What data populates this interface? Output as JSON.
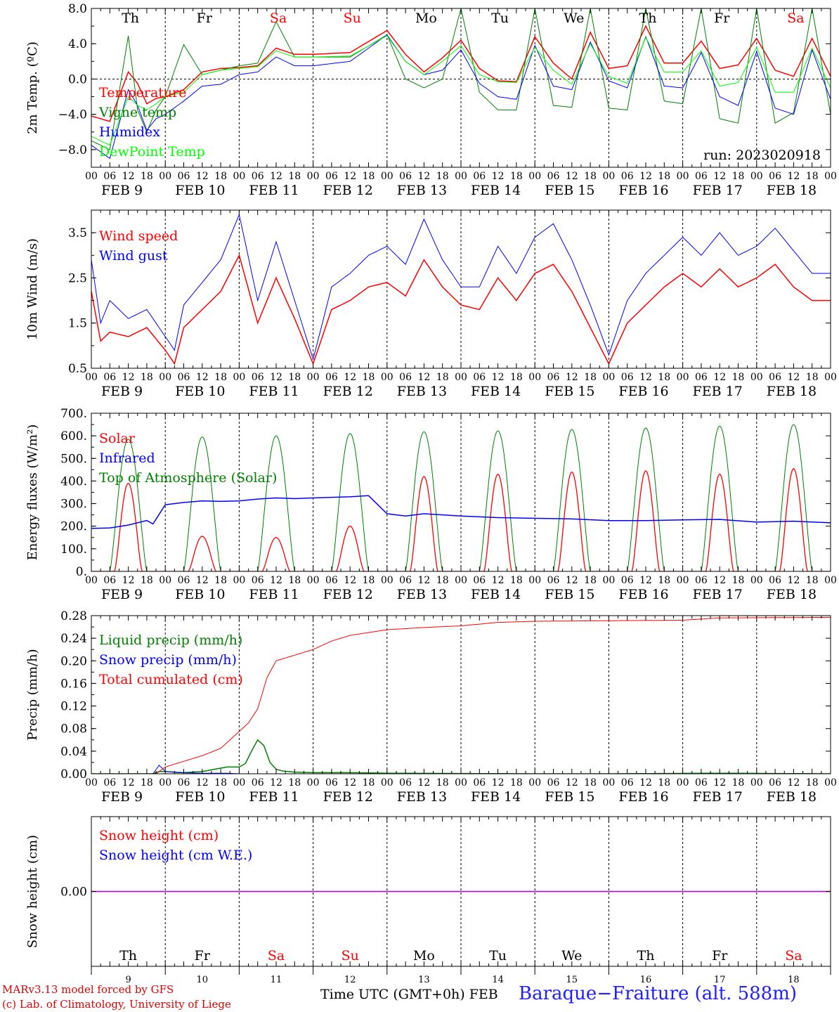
{
  "run_label": "run: 2023020918",
  "day_names": [
    "Th",
    "Fr",
    "Sa",
    "Su",
    "Mo",
    "Tu",
    "We",
    "Th",
    "Fr",
    "Sa"
  ],
  "weekend_flags": [
    false,
    false,
    true,
    true,
    false,
    false,
    false,
    false,
    false,
    true
  ],
  "date_labels": [
    "FEB  9",
    "FEB 10",
    "FEB 11",
    "FEB 12",
    "FEB 13",
    "FEB 14",
    "FEB 15",
    "FEB 16",
    "FEB 17",
    "FEB 18"
  ],
  "day_numbers": [
    "9",
    "10",
    "11",
    "12",
    "13",
    "14",
    "15",
    "16",
    "17",
    "18"
  ],
  "hour_tick_labels": [
    "00",
    "06",
    "12",
    "18"
  ],
  "final_hour_label": "00",
  "footer": {
    "credit_line1": "MARv3.13 model forced by GFS",
    "credit_line2": "(c) Lab. of Climatology, University of Liege",
    "x_axis_title": "Time UTC (GMT+0h) FEB",
    "station": "Baraque−Fraiture (alt. 588m)"
  },
  "colors": {
    "red": "#ff0000",
    "green": "#008000",
    "blue": "#0000ff",
    "light_green": "#00ff00",
    "purple": "#a020f0",
    "axis": "#000000"
  },
  "chart_data": [
    {
      "type": "line",
      "name": "temperature",
      "ylabel": "2m Temp. (ºC)",
      "ylim": [
        -10,
        8
      ],
      "ytick_values": [
        8,
        4,
        0,
        -4,
        -8
      ],
      "ytick_labels": [
        "8.0",
        "4.0",
        "0.0",
        "−4.0",
        "−8.0"
      ],
      "zero_line": true,
      "x_unit": "hours since FEB 9 00 UTC",
      "legend_position": "left",
      "series": [
        {
          "name": "Temperature",
          "color": "#ff0000",
          "x": [
            0,
            6,
            12,
            15,
            18,
            21,
            24,
            30,
            36,
            42,
            48,
            54,
            60,
            66,
            72,
            84,
            96,
            102,
            108,
            114,
            120,
            126,
            132,
            138,
            144,
            150,
            156,
            162,
            168,
            174,
            180,
            186,
            192,
            198,
            204,
            210,
            216,
            222,
            228,
            234,
            240
          ],
          "y": [
            -4.2,
            -4.8,
            0.8,
            -0.5,
            -2.8,
            -2.2,
            -2.0,
            -1.2,
            0.8,
            1.2,
            1.3,
            1.5,
            3.5,
            2.8,
            2.8,
            3.0,
            5.5,
            2.8,
            0.8,
            2.4,
            4.4,
            1.2,
            -0.2,
            -0.3,
            4.8,
            1.8,
            0.0,
            5.3,
            1.2,
            1.5,
            6.0,
            1.8,
            1.8,
            4.3,
            1.2,
            1.6,
            4.6,
            1.0,
            0.3,
            4.6,
            0.3
          ]
        },
        {
          "name": "Vigne temp",
          "color": "#008000",
          "x": [
            0,
            6,
            12,
            15,
            18,
            21,
            24,
            30,
            36,
            42,
            48,
            54,
            60,
            66,
            72,
            84,
            96,
            102,
            108,
            114,
            120,
            126,
            132,
            138,
            144,
            150,
            156,
            162,
            168,
            174,
            180,
            186,
            192,
            198,
            204,
            210,
            216,
            222,
            228,
            234,
            240
          ],
          "y": [
            -7.0,
            -8.0,
            4.9,
            -3.5,
            -6.0,
            -3.5,
            -2.0,
            3.9,
            0.5,
            1.0,
            1.5,
            1.8,
            6.5,
            2.5,
            2.5,
            2.5,
            5.0,
            0.0,
            -1.0,
            0.0,
            8.0,
            -1.5,
            -3.5,
            -3.5,
            8.0,
            -3.0,
            -3.2,
            8.0,
            -3.3,
            -3.5,
            8.0,
            -2.5,
            -2.8,
            8.0,
            -4.5,
            -5.0,
            8.0,
            -5.0,
            -3.8,
            8.0,
            -4.0
          ]
        },
        {
          "name": "Humidex",
          "color": "#0000ff",
          "x": [
            0,
            6,
            12,
            15,
            18,
            21,
            24,
            30,
            36,
            42,
            48,
            54,
            60,
            66,
            72,
            84,
            96,
            102,
            108,
            114,
            120,
            126,
            132,
            138,
            144,
            150,
            156,
            162,
            168,
            174,
            180,
            186,
            192,
            198,
            204,
            210,
            216,
            222,
            228,
            234,
            240
          ],
          "y": [
            -7.5,
            -9.0,
            -1.2,
            -3.0,
            -5.8,
            -4.5,
            -4.0,
            -2.5,
            -0.8,
            -0.6,
            0.5,
            0.8,
            2.5,
            1.5,
            1.5,
            2.0,
            5.0,
            2.0,
            0.5,
            1.0,
            3.3,
            -0.5,
            -2.0,
            -2.3,
            3.8,
            -0.8,
            -1.2,
            4.2,
            -0.2,
            -1.0,
            4.8,
            -0.8,
            -1.0,
            3.0,
            -2.0,
            -3.0,
            3.1,
            -3.3,
            -4.0,
            3.3,
            -2.3
          ]
        },
        {
          "name": "DewPoint Temp",
          "color": "#00ff00",
          "x": [
            0,
            6,
            12,
            15,
            18,
            21,
            24,
            30,
            36,
            42,
            48,
            54,
            60,
            66,
            72,
            84,
            96,
            102,
            108,
            114,
            120,
            126,
            132,
            138,
            144,
            150,
            156,
            162,
            168,
            174,
            180,
            186,
            192,
            198,
            204,
            210,
            216,
            222,
            228,
            234,
            240
          ],
          "y": [
            -6.5,
            -7.5,
            -2.0,
            -3.0,
            -3.5,
            -2.8,
            -2.0,
            -1.5,
            0.5,
            1.0,
            1.2,
            1.4,
            3.2,
            2.5,
            2.5,
            2.6,
            4.9,
            2.0,
            0.5,
            2.0,
            3.8,
            0.5,
            -0.3,
            -0.4,
            3.6,
            1.0,
            -0.6,
            4.0,
            0.3,
            -0.5,
            4.7,
            0.8,
            0.8,
            3.2,
            -0.8,
            -0.4,
            3.6,
            -1.5,
            -1.5,
            3.5,
            -1.0
          ]
        }
      ]
    },
    {
      "type": "line",
      "name": "wind",
      "ylabel": "10m Wind (m/s)",
      "ylim": [
        0.5,
        4.0
      ],
      "ytick_values": [
        3.5,
        2.5,
        1.5,
        0.5
      ],
      "ytick_labels": [
        "3.5",
        "2.5",
        "1.5",
        "0.5"
      ],
      "zero_line": false,
      "x_unit": "hours since FEB 9 00 UTC",
      "legend_position": "left",
      "series": [
        {
          "name": "Wind speed",
          "color": "#ff0000",
          "x": [
            0,
            3,
            6,
            12,
            18,
            24,
            27,
            30,
            36,
            42,
            48,
            54,
            60,
            66,
            72,
            78,
            84,
            90,
            96,
            102,
            108,
            114,
            120,
            126,
            132,
            138,
            144,
            150,
            156,
            162,
            168,
            174,
            180,
            186,
            192,
            198,
            204,
            210,
            216,
            222,
            228,
            234,
            240
          ],
          "y": [
            2.2,
            1.1,
            1.3,
            1.2,
            1.4,
            0.9,
            0.6,
            1.4,
            1.8,
            2.2,
            3.0,
            1.5,
            2.5,
            1.6,
            0.6,
            1.8,
            2.0,
            2.3,
            2.4,
            2.1,
            2.9,
            2.3,
            1.9,
            1.8,
            2.5,
            2.0,
            2.6,
            2.8,
            2.2,
            1.4,
            0.6,
            1.5,
            1.9,
            2.3,
            2.6,
            2.3,
            2.7,
            2.3,
            2.5,
            2.8,
            2.3,
            2.0,
            2.0
          ]
        },
        {
          "name": "Wind gust",
          "color": "#0000ff",
          "x": [
            0,
            3,
            6,
            12,
            18,
            24,
            27,
            30,
            36,
            42,
            48,
            54,
            60,
            66,
            72,
            78,
            84,
            90,
            96,
            102,
            108,
            114,
            120,
            126,
            132,
            138,
            144,
            150,
            156,
            162,
            168,
            174,
            180,
            186,
            192,
            198,
            204,
            210,
            216,
            222,
            228,
            234,
            240
          ],
          "y": [
            2.9,
            1.5,
            2.0,
            1.6,
            1.8,
            1.2,
            0.9,
            1.9,
            2.4,
            2.9,
            3.9,
            2.0,
            3.3,
            2.0,
            0.7,
            2.3,
            2.6,
            3.0,
            3.2,
            2.8,
            3.8,
            2.9,
            2.3,
            2.3,
            3.2,
            2.6,
            3.4,
            3.7,
            2.9,
            1.9,
            0.8,
            2.0,
            2.6,
            3.0,
            3.4,
            3.0,
            3.5,
            3.0,
            3.2,
            3.6,
            3.1,
            2.6,
            2.6
          ]
        }
      ]
    },
    {
      "type": "line",
      "name": "energy",
      "ylabel": "Energy fluxes (W/m²)",
      "ylim": [
        0,
        700
      ],
      "ytick_values": [
        700,
        600,
        500,
        400,
        300,
        200,
        100,
        0
      ],
      "ytick_labels": [
        "700.",
        "600.",
        "500.",
        "400.",
        "300.",
        "200.",
        "100.",
        "0."
      ],
      "zero_line": false,
      "x_unit": "hours since FEB 9 00 UTC",
      "legend_position": "left",
      "toa_peaks": [
        585,
        595,
        600,
        610,
        618,
        622,
        628,
        635,
        643,
        650
      ],
      "solar_peaks": [
        390,
        155,
        150,
        200,
        420,
        430,
        440,
        445,
        430,
        455
      ],
      "series": [
        {
          "name": "Solar",
          "color": "#ff0000",
          "x": [],
          "y": []
        },
        {
          "name": "Infrared",
          "color": "#0000ff",
          "x": [
            0,
            6,
            12,
            18,
            20,
            24,
            30,
            36,
            42,
            48,
            54,
            60,
            66,
            72,
            84,
            90,
            96,
            102,
            108,
            114,
            120,
            132,
            144,
            156,
            168,
            180,
            192,
            204,
            216,
            228,
            240
          ],
          "y": [
            190,
            192,
            205,
            225,
            210,
            295,
            305,
            312,
            310,
            312,
            320,
            325,
            322,
            325,
            330,
            335,
            255,
            245,
            255,
            250,
            245,
            238,
            235,
            232,
            225,
            225,
            228,
            230,
            218,
            222,
            215
          ]
        },
        {
          "name": "Top of Atmosphere (Solar)",
          "color": "#008000",
          "x": [],
          "y": []
        }
      ]
    },
    {
      "type": "line",
      "name": "precip",
      "ylabel": "Precip (mm/h)",
      "ylim": [
        0,
        0.28
      ],
      "ytick_values": [
        0.28,
        0.24,
        0.2,
        0.16,
        0.12,
        0.08,
        0.04,
        0.0
      ],
      "ytick_labels": [
        "0.28",
        "0.24",
        "0.20",
        "0.16",
        "0.12",
        "0.08",
        "0.04",
        "0.00"
      ],
      "zero_line": false,
      "x_unit": "hours since FEB 9 00 UTC",
      "legend_position": "left",
      "series": [
        {
          "name": "Liquid precip (mm/h)",
          "color": "#008000",
          "x": [
            0,
            20,
            22,
            24,
            30,
            36,
            40,
            44,
            48,
            50,
            52,
            54,
            56,
            58,
            60,
            62,
            66,
            72,
            84,
            96,
            120,
            144,
            168,
            204,
            240
          ],
          "y": [
            0,
            0,
            0.004,
            0.004,
            0.002,
            0.004,
            0.008,
            0.012,
            0.012,
            0.018,
            0.04,
            0.06,
            0.05,
            0.02,
            0.008,
            0.005,
            0.003,
            0.002,
            0.002,
            0.001,
            0.0005,
            0,
            0,
            0.001,
            0
          ]
        },
        {
          "name": "Snow precip (mm/h)",
          "color": "#0000ff",
          "x": [
            0,
            20,
            22,
            23,
            24,
            28,
            36,
            44,
            48,
            240
          ],
          "y": [
            0,
            0,
            0.015,
            0.01,
            0.004,
            0.002,
            0.001,
            0.001,
            0,
            0
          ]
        },
        {
          "name": "Total cumulated (cm)",
          "color": "#ff0000",
          "x": [
            0,
            21,
            24,
            30,
            36,
            42,
            48,
            51,
            54,
            57,
            60,
            66,
            72,
            78,
            84,
            96,
            108,
            120,
            132,
            144,
            168,
            192,
            204,
            240
          ],
          "y": [
            0,
            0,
            0.012,
            0.022,
            0.032,
            0.045,
            0.075,
            0.09,
            0.115,
            0.17,
            0.2,
            0.21,
            0.22,
            0.235,
            0.245,
            0.255,
            0.259,
            0.262,
            0.268,
            0.27,
            0.271,
            0.272,
            0.276,
            0.277
          ]
        }
      ]
    },
    {
      "type": "line",
      "name": "snow",
      "ylabel": "Snow height (cm)",
      "ylim": [
        -1,
        1
      ],
      "ytick_values": [
        0
      ],
      "ytick_labels": [
        "0.00"
      ],
      "zero_line": false,
      "x_unit": "hours since FEB 9 00 UTC",
      "legend_position": "left",
      "series": [
        {
          "name": "Snow height (cm)",
          "color": "#ff0000",
          "x": [
            0,
            240
          ],
          "y": [
            0,
            0
          ]
        },
        {
          "name": "Snow height (cm W.E.)",
          "color": "#0000ff",
          "x": [
            0,
            240
          ],
          "y": [
            0,
            0
          ]
        }
      ]
    }
  ]
}
